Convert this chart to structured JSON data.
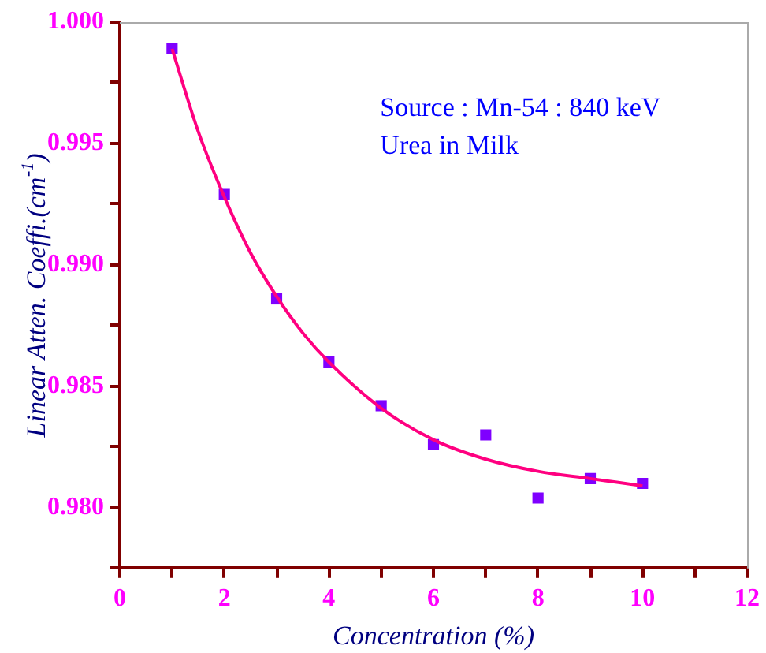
{
  "chart_data": {
    "type": "scatter",
    "xlabel": "Concentration (%)",
    "ylabel": "Linear Atten. Coeffi.(cm$^{-1}$)",
    "annotations": [
      "Source : Mn-54 : 840 keV",
      "Urea in Milk"
    ],
    "series": [
      {
        "type": "scatter",
        "color": "#7f00ff",
        "marker": "square",
        "x": [
          1,
          2,
          3,
          4,
          5,
          6,
          7,
          8,
          9,
          10
        ],
        "values": [
          0.9989,
          0.9929,
          0.9886,
          0.986,
          0.9842,
          0.9826,
          0.983,
          0.9804,
          0.9812,
          0.981
        ]
      },
      {
        "type": "line",
        "color": "#ff0080",
        "marker": "none",
        "line_style": "solid",
        "x": [
          1,
          1.5,
          2,
          2.5,
          3,
          3.5,
          4,
          5,
          6,
          7,
          8,
          9,
          10
        ],
        "values": [
          0.9989,
          0.9955,
          0.9928,
          0.9905,
          0.9887,
          0.9872,
          0.986,
          0.9841,
          0.9828,
          0.982,
          0.9815,
          0.9812,
          0.9809
        ]
      }
    ],
    "xlim": [
      0,
      12
    ],
    "xticks": [
      0,
      {
        "value": 1,
        "label": null
      },
      2,
      {
        "value": 3,
        "label": null
      },
      4,
      {
        "value": 5,
        "label": null
      },
      6,
      {
        "value": 7,
        "label": null
      },
      8,
      {
        "value": 9,
        "label": null
      },
      10,
      {
        "value": 11,
        "label": null
      },
      12
    ],
    "ylim": [
      0.9775,
      1.0
    ],
    "yticks": [
      {
        "value": 0.9775,
        "label": null
      },
      {
        "value": 0.98,
        "label": "0.980"
      },
      {
        "value": 0.9825,
        "label": null
      },
      {
        "value": 0.985,
        "label": "0.985"
      },
      {
        "value": 0.9875,
        "label": null
      },
      {
        "value": 0.99,
        "label": "0.990"
      },
      {
        "value": 0.9925,
        "label": null
      },
      {
        "value": 0.995,
        "label": "0.995"
      },
      {
        "value": 0.9975,
        "label": null
      },
      {
        "value": 1.0,
        "label": "1.000"
      }
    ],
    "grid": false,
    "legend": false
  }
}
